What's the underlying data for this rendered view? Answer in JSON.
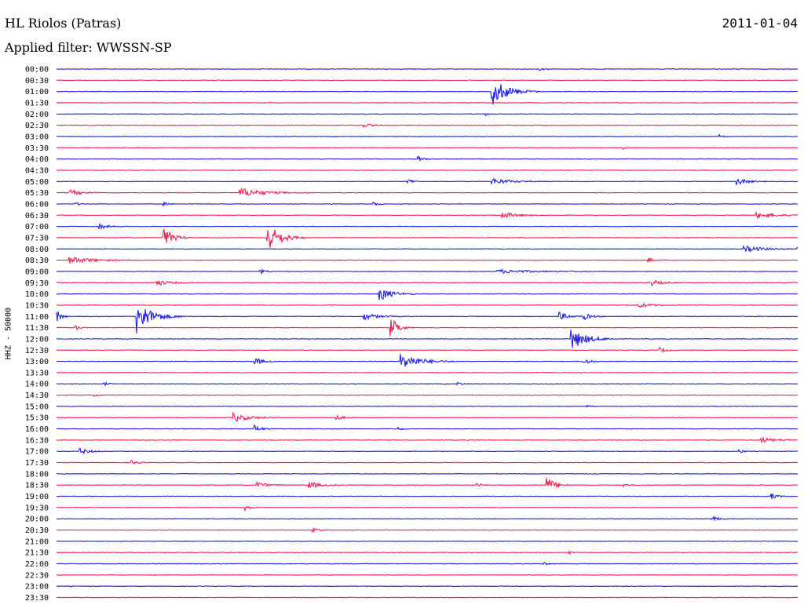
{
  "header": {
    "station": "HL Riolos (Patras)",
    "date": "2011-01-04",
    "filter": "Applied filter: WWSSN-SP"
  },
  "chart_data": {
    "type": "line",
    "ylabel": "HHZ - 50000",
    "colors": {
      "even": "#1f1fdf",
      "odd": "#ef1f4f"
    },
    "x_unit": "minutes within row (0-30)",
    "rows": [
      {
        "label": "00:00",
        "events": [
          {
            "t": 19.5,
            "amp": 0.6,
            "dur": 0.3
          }
        ]
      },
      {
        "label": "00:30",
        "events": []
      },
      {
        "label": "01:00",
        "events": [
          {
            "t": 17.6,
            "amp": 4.5,
            "dur": 1.2
          }
        ]
      },
      {
        "label": "01:30",
        "events": []
      },
      {
        "label": "02:00",
        "events": [
          {
            "t": 17.3,
            "amp": 0.8,
            "dur": 0.3
          }
        ]
      },
      {
        "label": "02:30",
        "events": [
          {
            "t": 12.4,
            "amp": 0.7,
            "dur": 0.5
          }
        ]
      },
      {
        "label": "03:00",
        "events": [
          {
            "t": 26.8,
            "amp": 0.8,
            "dur": 0.3
          }
        ]
      },
      {
        "label": "03:30",
        "events": [
          {
            "t": 22.9,
            "amp": 0.7,
            "dur": 0.2
          }
        ]
      },
      {
        "label": "04:00",
        "events": [
          {
            "t": 14.6,
            "amp": 1.0,
            "dur": 0.4
          }
        ]
      },
      {
        "label": "04:30",
        "events": []
      },
      {
        "label": "05:00",
        "events": [
          {
            "t": 14.2,
            "amp": 1.0,
            "dur": 0.4
          },
          {
            "t": 17.6,
            "amp": 1.0,
            "dur": 1.5
          },
          {
            "t": 27.5,
            "amp": 1.2,
            "dur": 0.8
          }
        ]
      },
      {
        "label": "05:30",
        "events": [
          {
            "t": 0.5,
            "amp": 1.0,
            "dur": 1.0
          },
          {
            "t": 7.4,
            "amp": 1.5,
            "dur": 1.8
          }
        ]
      },
      {
        "label": "06:00",
        "events": [
          {
            "t": 0.7,
            "amp": 0.8,
            "dur": 0.3
          },
          {
            "t": 4.3,
            "amp": 0.6,
            "dur": 0.3
          },
          {
            "t": 12.8,
            "amp": 0.8,
            "dur": 0.3
          }
        ]
      },
      {
        "label": "06:30",
        "events": [
          {
            "t": 18.0,
            "amp": 1.0,
            "dur": 1.2
          },
          {
            "t": 28.3,
            "amp": 1.0,
            "dur": 1.5
          }
        ]
      },
      {
        "label": "07:00",
        "events": [
          {
            "t": 1.7,
            "amp": 1.0,
            "dur": 0.6
          }
        ]
      },
      {
        "label": "07:30",
        "events": [
          {
            "t": 4.3,
            "amp": 3.5,
            "dur": 0.7
          },
          {
            "t": 8.5,
            "amp": 5.0,
            "dur": 1.0
          }
        ]
      },
      {
        "label": "08:00",
        "events": [
          {
            "t": 27.8,
            "amp": 1.0,
            "dur": 1.5
          },
          {
            "t": 30.0,
            "amp": 1.0,
            "dur": 0.7
          }
        ]
      },
      {
        "label": "08:30",
        "events": [
          {
            "t": 0.5,
            "amp": 1.0,
            "dur": 2.0
          },
          {
            "t": 23.9,
            "amp": 0.8,
            "dur": 0.5
          }
        ]
      },
      {
        "label": "09:00",
        "events": [
          {
            "t": 8.2,
            "amp": 0.8,
            "dur": 0.5
          },
          {
            "t": 17.8,
            "amp": 0.6,
            "dur": 3.0
          }
        ]
      },
      {
        "label": "09:30",
        "events": [
          {
            "t": 4.0,
            "amp": 1.0,
            "dur": 1.0
          },
          {
            "t": 24.0,
            "amp": 1.0,
            "dur": 0.8
          }
        ]
      },
      {
        "label": "10:00",
        "events": [
          {
            "t": 13.0,
            "amp": 2.5,
            "dur": 1.0
          }
        ]
      },
      {
        "label": "10:30",
        "events": [
          {
            "t": 23.5,
            "amp": 0.8,
            "dur": 1.0
          }
        ]
      },
      {
        "label": "11:00",
        "events": [
          {
            "t": 0.0,
            "amp": 2.0,
            "dur": 0.3
          },
          {
            "t": 3.2,
            "amp": 5.5,
            "dur": 1.2
          },
          {
            "t": 12.4,
            "amp": 1.2,
            "dur": 1.0
          },
          {
            "t": 20.3,
            "amp": 1.5,
            "dur": 0.7
          },
          {
            "t": 21.3,
            "amp": 1.2,
            "dur": 0.6
          }
        ]
      },
      {
        "label": "11:30",
        "events": [
          {
            "t": 0.7,
            "amp": 1.2,
            "dur": 0.3
          },
          {
            "t": 13.5,
            "amp": 3.5,
            "dur": 0.6
          }
        ]
      },
      {
        "label": "12:00",
        "events": [
          {
            "t": 20.8,
            "amp": 3.5,
            "dur": 1.2
          }
        ]
      },
      {
        "label": "12:30",
        "events": [
          {
            "t": 24.4,
            "amp": 0.8,
            "dur": 0.5
          }
        ]
      },
      {
        "label": "13:00",
        "events": [
          {
            "t": 8.0,
            "amp": 1.2,
            "dur": 0.6
          },
          {
            "t": 13.9,
            "amp": 2.5,
            "dur": 1.5
          },
          {
            "t": 21.3,
            "amp": 1.2,
            "dur": 0.5
          }
        ]
      },
      {
        "label": "13:30",
        "events": []
      },
      {
        "label": "14:00",
        "events": [
          {
            "t": 1.9,
            "amp": 0.7,
            "dur": 0.3
          },
          {
            "t": 16.2,
            "amp": 0.9,
            "dur": 0.3
          }
        ]
      },
      {
        "label": "14:30",
        "events": [
          {
            "t": 1.5,
            "amp": 0.6,
            "dur": 0.3
          }
        ]
      },
      {
        "label": "15:00",
        "events": [
          {
            "t": 21.4,
            "amp": 0.5,
            "dur": 0.3
          }
        ]
      },
      {
        "label": "15:30",
        "events": [
          {
            "t": 7.1,
            "amp": 1.5,
            "dur": 1.2
          },
          {
            "t": 11.3,
            "amp": 0.9,
            "dur": 0.5
          }
        ]
      },
      {
        "label": "16:00",
        "events": [
          {
            "t": 8.0,
            "amp": 1.2,
            "dur": 0.5
          },
          {
            "t": 13.8,
            "amp": 0.7,
            "dur": 0.3
          }
        ]
      },
      {
        "label": "16:30",
        "events": [
          {
            "t": 28.5,
            "amp": 0.8,
            "dur": 1.2
          }
        ]
      },
      {
        "label": "17:00",
        "events": [
          {
            "t": 0.9,
            "amp": 1.0,
            "dur": 0.8
          },
          {
            "t": 27.6,
            "amp": 0.8,
            "dur": 0.3
          }
        ]
      },
      {
        "label": "17:30",
        "events": [
          {
            "t": 3.0,
            "amp": 0.8,
            "dur": 0.5
          }
        ]
      },
      {
        "label": "18:00",
        "events": []
      },
      {
        "label": "18:30",
        "events": [
          {
            "t": 8.1,
            "amp": 1.0,
            "dur": 0.7
          },
          {
            "t": 10.2,
            "amp": 1.2,
            "dur": 0.8
          },
          {
            "t": 17.0,
            "amp": 0.8,
            "dur": 0.3
          },
          {
            "t": 19.8,
            "amp": 3.0,
            "dur": 0.6
          },
          {
            "t": 22.9,
            "amp": 0.8,
            "dur": 0.3
          }
        ]
      },
      {
        "label": "19:00",
        "events": [
          {
            "t": 28.9,
            "amp": 1.2,
            "dur": 0.4
          }
        ]
      },
      {
        "label": "19:30",
        "events": [
          {
            "t": 7.6,
            "amp": 0.9,
            "dur": 0.4
          }
        ]
      },
      {
        "label": "20:00",
        "events": [
          {
            "t": 26.5,
            "amp": 0.8,
            "dur": 0.6
          }
        ]
      },
      {
        "label": "20:30",
        "events": [
          {
            "t": 10.3,
            "amp": 0.9,
            "dur": 0.6
          }
        ]
      },
      {
        "label": "21:00",
        "events": []
      },
      {
        "label": "21:30",
        "events": [
          {
            "t": 20.7,
            "amp": 0.6,
            "dur": 0.3
          }
        ]
      },
      {
        "label": "22:00",
        "events": [
          {
            "t": 19.7,
            "amp": 0.6,
            "dur": 0.3
          }
        ]
      },
      {
        "label": "22:30",
        "events": []
      },
      {
        "label": "23:00",
        "events": []
      },
      {
        "label": "23:30",
        "events": []
      }
    ]
  }
}
